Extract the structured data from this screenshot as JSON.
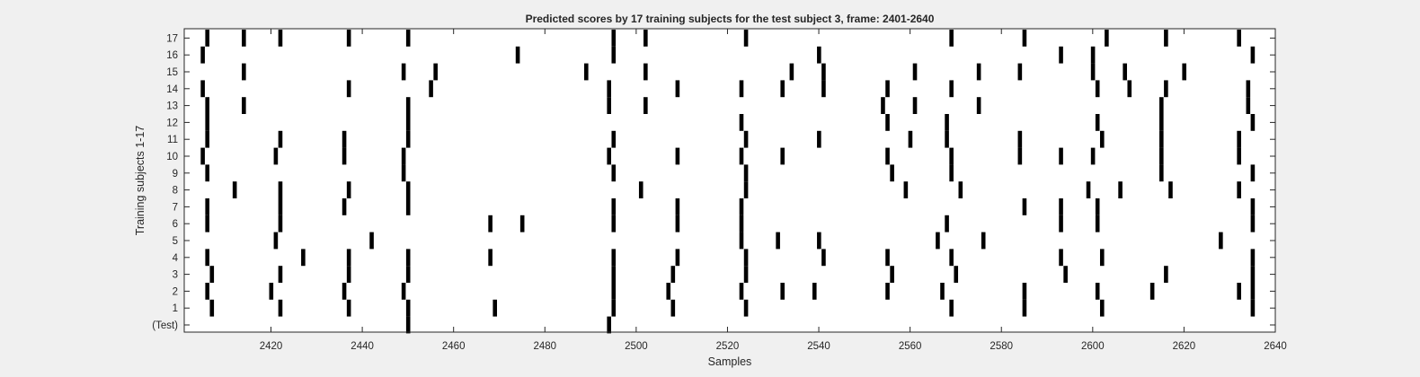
{
  "colors": {
    "background": "#f0f0f0",
    "axes": "#ffffff",
    "mark": "#000000",
    "text": "#262626"
  },
  "chart_data": {
    "type": "raster",
    "title": "Predicted scores by 17 training subjects for the test subject 3, frame: 2401-2640",
    "xlabel": "Samples",
    "ylabel": "Training subjects 1-17",
    "xlim": [
      2401,
      2640
    ],
    "xticks": [
      2420,
      2440,
      2460,
      2480,
      2500,
      2520,
      2540,
      2560,
      2580,
      2600,
      2620,
      2640
    ],
    "ytick_labels": [
      "(Test)",
      "1",
      "2",
      "3",
      "4",
      "5",
      "6",
      "7",
      "8",
      "9",
      "10",
      "11",
      "12",
      "13",
      "14",
      "15",
      "16",
      "17"
    ],
    "grid": false,
    "legend": "none",
    "rows": [
      {
        "label": "(Test)",
        "events": [
          2450,
          2494
        ]
      },
      {
        "label": "1",
        "events": [
          2407,
          2422,
          2437,
          2450,
          2469,
          2495,
          2508,
          2524,
          2569,
          2585,
          2602,
          2635
        ]
      },
      {
        "label": "2",
        "events": [
          2406,
          2420,
          2436,
          2449,
          2495,
          2507,
          2523,
          2532,
          2539,
          2555,
          2567,
          2585,
          2601,
          2613,
          2632,
          2635
        ]
      },
      {
        "label": "3",
        "events": [
          2407,
          2422,
          2437,
          2450,
          2495,
          2508,
          2524,
          2556,
          2570,
          2594,
          2616,
          2635
        ]
      },
      {
        "label": "4",
        "events": [
          2406,
          2427,
          2437,
          2450,
          2468,
          2495,
          2509,
          2524,
          2541,
          2555,
          2569,
          2593,
          2602,
          2635
        ]
      },
      {
        "label": "5",
        "events": [
          2421,
          2442,
          2523,
          2531,
          2540,
          2566,
          2576,
          2628
        ]
      },
      {
        "label": "6",
        "events": [
          2406,
          2422,
          2468,
          2475,
          2495,
          2509,
          2523,
          2568,
          2593,
          2601,
          2635
        ]
      },
      {
        "label": "7",
        "events": [
          2406,
          2422,
          2436,
          2450,
          2495,
          2509,
          2523,
          2585,
          2593,
          2601,
          2635
        ]
      },
      {
        "label": "8",
        "events": [
          2412,
          2422,
          2437,
          2450,
          2501,
          2524,
          2559,
          2571,
          2599,
          2606,
          2617,
          2632
        ]
      },
      {
        "label": "9",
        "events": [
          2406,
          2449,
          2495,
          2524,
          2556,
          2569,
          2615,
          2635
        ]
      },
      {
        "label": "10",
        "events": [
          2405,
          2421,
          2436,
          2449,
          2494,
          2509,
          2523,
          2532,
          2555,
          2569,
          2584,
          2593,
          2600,
          2615,
          2632
        ]
      },
      {
        "label": "11",
        "events": [
          2406,
          2422,
          2436,
          2450,
          2495,
          2524,
          2540,
          2560,
          2568,
          2584,
          2602,
          2615,
          2632
        ]
      },
      {
        "label": "12",
        "events": [
          2406,
          2450,
          2523,
          2555,
          2568,
          2601,
          2615,
          2635
        ]
      },
      {
        "label": "13",
        "events": [
          2406,
          2414,
          2450,
          2494,
          2502,
          2554,
          2561,
          2575,
          2615,
          2634
        ]
      },
      {
        "label": "14",
        "events": [
          2405,
          2437,
          2455,
          2494,
          2509,
          2523,
          2532,
          2541,
          2555,
          2569,
          2601,
          2608,
          2616,
          2634
        ]
      },
      {
        "label": "15",
        "events": [
          2414,
          2449,
          2456,
          2489,
          2502,
          2534,
          2541,
          2561,
          2575,
          2584,
          2600,
          2607,
          2620
        ]
      },
      {
        "label": "16",
        "events": [
          2405,
          2474,
          2495,
          2540,
          2593,
          2600,
          2635
        ]
      },
      {
        "label": "17",
        "events": [
          2406,
          2414,
          2422,
          2437,
          2450,
          2495,
          2502,
          2524,
          2569,
          2585,
          2603,
          2616,
          2632
        ]
      }
    ]
  }
}
